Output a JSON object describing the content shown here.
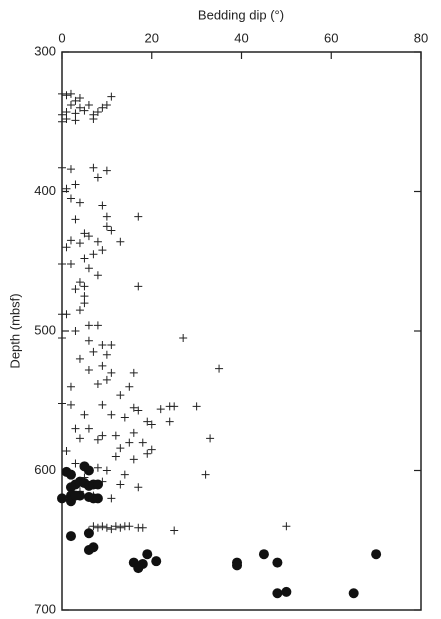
{
  "chart_data": {
    "type": "scatter",
    "title": "Bedding dip (°)",
    "y_label": "Depth (mbsf)",
    "xlim": [
      0,
      80
    ],
    "xticks": [
      0,
      20,
      40,
      60,
      80
    ],
    "ylim": [
      300,
      700
    ],
    "yticks": [
      300,
      400,
      500,
      600,
      700
    ],
    "y_inverted": true,
    "x_axis_position": "top",
    "series": [
      {
        "marker": "plus",
        "color": "#222222",
        "x": [
          0,
          1,
          2,
          3,
          4,
          11,
          2,
          4,
          6,
          9,
          10,
          0,
          1,
          3,
          5,
          7,
          8,
          1,
          3,
          0,
          7,
          0,
          2,
          7,
          8,
          10,
          3,
          1,
          2,
          4,
          9,
          10,
          17,
          3,
          10,
          11,
          5,
          6,
          2,
          4,
          8,
          13,
          1,
          7,
          9,
          5,
          0,
          2,
          6,
          8,
          4,
          5,
          17,
          3,
          5,
          5,
          4,
          0,
          1,
          6,
          8,
          3,
          0,
          6,
          9,
          27,
          11,
          7,
          10,
          4,
          9,
          6,
          11,
          35,
          16,
          10,
          8,
          2,
          15,
          13,
          0,
          2,
          9,
          16,
          17,
          22,
          24,
          25,
          30,
          5,
          11,
          14,
          19,
          20,
          24,
          3,
          6,
          9,
          12,
          16,
          33,
          4,
          8,
          15,
          18,
          13,
          20,
          1,
          19,
          12,
          16,
          3,
          8,
          10,
          14,
          32,
          5,
          9,
          13,
          17,
          4,
          11,
          7,
          7,
          8,
          9,
          10,
          11,
          12,
          13,
          14,
          15,
          17,
          18,
          6,
          25,
          50
        ],
        "values": [
          330,
          331,
          330,
          335,
          333,
          332,
          338,
          340,
          338,
          340,
          338,
          345,
          343,
          344,
          342,
          345,
          343,
          348,
          349,
          350,
          348,
          383,
          384,
          383,
          390,
          385,
          395,
          398,
          405,
          408,
          410,
          418,
          418,
          420,
          425,
          428,
          430,
          432,
          435,
          437,
          436,
          436,
          440,
          445,
          442,
          448,
          452,
          452,
          455,
          460,
          465,
          468,
          468,
          470,
          475,
          480,
          485,
          488,
          488,
          496,
          496,
          500,
          505,
          507,
          510,
          505,
          510,
          515,
          517,
          520,
          525,
          528,
          530,
          527,
          530,
          535,
          538,
          540,
          540,
          546,
          552,
          553,
          553,
          555,
          557,
          556,
          554,
          554,
          554,
          560,
          560,
          562,
          565,
          567,
          565,
          570,
          570,
          575,
          575,
          573,
          577,
          577,
          578,
          580,
          580,
          584,
          585,
          586,
          588,
          590,
          592,
          595,
          598,
          600,
          603,
          603,
          605,
          608,
          610,
          612,
          615,
          620,
          618,
          640,
          641,
          640,
          641,
          642,
          640,
          641,
          640,
          640,
          641,
          641,
          643,
          643,
          640
        ]
      },
      {
        "marker": "circle",
        "color": "#111111",
        "x": [
          1,
          2,
          3,
          2,
          4,
          5,
          6,
          7,
          8,
          5,
          6,
          0,
          2,
          4,
          6,
          7,
          8,
          2,
          3,
          6,
          2,
          6,
          7,
          19,
          45,
          70,
          16,
          18,
          21,
          17,
          39,
          39,
          48,
          48,
          50,
          65
        ],
        "values": [
          601,
          603,
          610,
          612,
          608,
          609,
          611,
          610,
          610,
          597,
          600,
          620,
          618,
          618,
          619,
          620,
          620,
          622,
          618,
          645,
          647,
          657,
          655,
          660,
          660,
          660,
          666,
          667,
          665,
          670,
          666,
          668,
          666,
          688,
          687,
          688
        ]
      }
    ]
  }
}
